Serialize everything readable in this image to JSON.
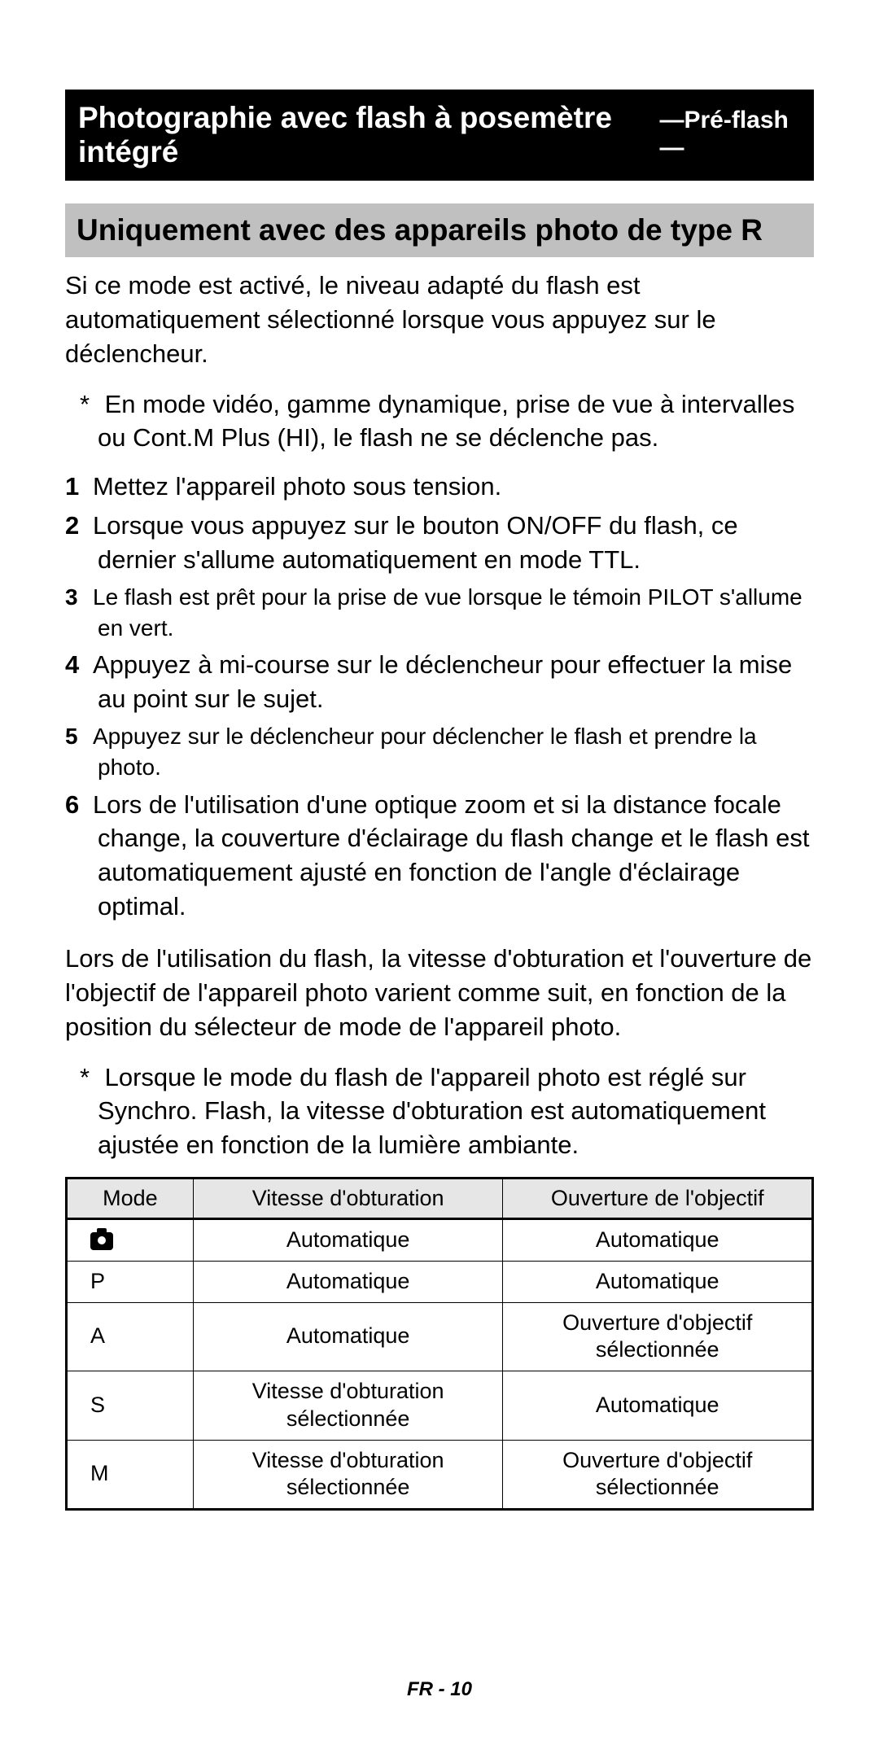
{
  "title": {
    "main": "Photographie avec flash à posemètre intégré",
    "sub": "—Pré-flash —"
  },
  "subtitle": "Uniquement avec des appareils photo de type R",
  "intro": "Si ce mode est activé, le niveau adapté du flash est automatiquement sélectionné lorsque vous appuyez sur le déclencheur.",
  "note1": "En mode vidéo, gamme dynamique, prise de vue à intervalles ou Cont.M Plus (HI), le flash ne se déclenche pas.",
  "steps": [
    "Mettez l'appareil photo sous tension.",
    "Lorsque vous appuyez sur le bouton ON/OFF du flash, ce dernier s'allume automatiquement en mode TTL.",
    "Le flash est prêt pour la prise de vue lorsque le témoin PILOT s'allume en vert.",
    "Appuyez à mi-course sur le déclencheur pour effectuer la mise au point sur le sujet.",
    "Appuyez sur le déclencheur pour déclencher le flash et prendre la photo.",
    "Lors de l'utilisation d'une optique zoom et si la distance focale change, la couverture d'éclairage du flash change et le flash est automatiquement ajusté en fonction de l'angle d'éclairage optimal."
  ],
  "step_small": [
    false,
    false,
    true,
    false,
    true,
    false
  ],
  "para2": "Lors de l'utilisation du flash, la vitesse d'obturation et l'ouverture de l'objectif de l'appareil photo varient comme suit, en fonction de la position du sélecteur de mode de l'appareil photo.",
  "note2": "Lorsque le mode du flash de l'appareil photo est réglé sur Synchro. Flash, la vitesse d'obturation est automatiquement ajustée en fonction de la lumière ambiante.",
  "table": {
    "headers": [
      "Mode",
      "Vitesse d'obturation",
      "Ouverture de l'objectif"
    ],
    "header_bg": "#e6e6e6",
    "border_color": "#000000",
    "font_size": 27,
    "rows": [
      {
        "mode": "camera-icon",
        "shutter": "Automatique",
        "aperture": "Automatique"
      },
      {
        "mode": "P",
        "shutter": "Automatique",
        "aperture": "Automatique"
      },
      {
        "mode": "A",
        "shutter": "Automatique",
        "aperture": "Ouverture d'objectif sélectionnée"
      },
      {
        "mode": "S",
        "shutter": "Vitesse d'obturation sélectionnée",
        "aperture": "Automatique"
      },
      {
        "mode": "M",
        "shutter": "Vitesse d'obturation sélectionnée",
        "aperture": "Ouverture d'objectif sélectionnée"
      }
    ]
  },
  "footer": "FR - 10",
  "colors": {
    "title_bg": "#000000",
    "title_fg": "#ffffff",
    "subtitle_bg": "#c0c0c0",
    "page_bg": "#ffffff",
    "text": "#000000"
  },
  "typography": {
    "title_main_size": 37,
    "title_sub_size": 30,
    "subtitle_size": 37,
    "body_size": 31,
    "small_step_size": 28,
    "table_size": 27,
    "footer_size": 24
  }
}
